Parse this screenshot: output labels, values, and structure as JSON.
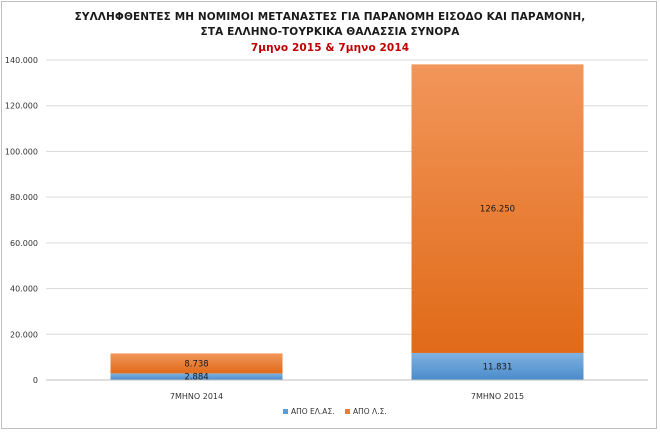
{
  "chart_data": {
    "type": "bar",
    "stacked": true,
    "title": "ΣΥΛΛΗΦΘΕΝΤΕΣ ΜΗ ΝΟΜΙΜΟΙ ΜΕΤΑΝΑΣΤΕΣ ΓΙΑ ΠΑΡΑΝΟΜΗ ΕΙΣΟΔΟ ΚΑΙ ΠΑΡΑΜΟΝΗ,",
    "title_line2": "ΣΤΑ ΕΛΛΗΝΟ-ΤΟΥΡΚΙΚΑ ΘΑΛΑΣΣΙΑ ΣΥΝΟΡΑ",
    "subtitle": "7μηνο 2015 & 7μηνο 2014",
    "categories": [
      "7ΜΗΝΟ 2014",
      "7ΜΗΝΟ 2015"
    ],
    "series": [
      {
        "name": "ΑΠΟ ΕΛ.ΑΣ.",
        "values": [
          2884,
          11831
        ],
        "labels": [
          "2.884",
          "11.831"
        ],
        "color": "#5b9bd5"
      },
      {
        "name": "ΑΠΟ Λ.Σ.",
        "values": [
          8738,
          126250
        ],
        "labels": [
          "8.738",
          "126.250"
        ],
        "color": "#ed7d31"
      }
    ],
    "ylim": [
      0,
      140000
    ],
    "yticks": [
      0,
      20000,
      40000,
      60000,
      80000,
      100000,
      120000,
      140000
    ],
    "ytick_labels": [
      "0",
      "20.000",
      "40.000",
      "60.000",
      "80.000",
      "100.000",
      "120.000",
      "140.000"
    ],
    "grid": true,
    "legend": "bottom"
  }
}
